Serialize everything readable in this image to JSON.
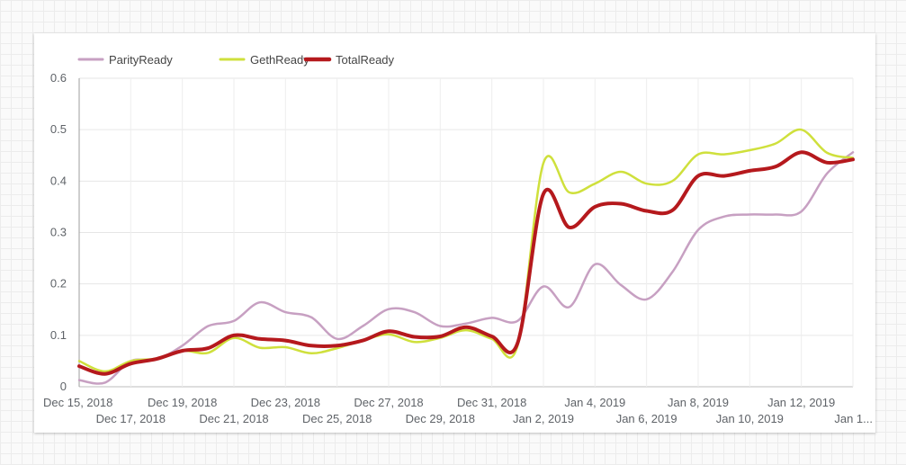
{
  "chart_data": {
    "type": "line",
    "title": "",
    "xlabel": "",
    "ylabel": "",
    "ylim": [
      0,
      0.6
    ],
    "yticks": [
      "0",
      "0.1",
      "0.2",
      "0.3",
      "0.4",
      "0.5",
      "0.6"
    ],
    "grid": true,
    "legend_position": "top-left",
    "x": [
      "Dec 15, 2018",
      "Dec 16, 2018",
      "Dec 17, 2018",
      "Dec 18, 2018",
      "Dec 19, 2018",
      "Dec 20, 2018",
      "Dec 21, 2018",
      "Dec 22, 2018",
      "Dec 23, 2018",
      "Dec 24, 2018",
      "Dec 25, 2018",
      "Dec 26, 2018",
      "Dec 27, 2018",
      "Dec 28, 2018",
      "Dec 29, 2018",
      "Dec 30, 2018",
      "Dec 31, 2018",
      "Jan 1, 2019",
      "Jan 2, 2019",
      "Jan 3, 2019",
      "Jan 4, 2019",
      "Jan 5, 2019",
      "Jan 6, 2019",
      "Jan 7, 2019",
      "Jan 8, 2019",
      "Jan 9, 2019",
      "Jan 10, 2019",
      "Jan 11, 2019",
      "Jan 12, 2019",
      "Jan 13, 2019",
      "Jan 14, 2019"
    ],
    "xtick_labels": [
      "Dec 15, 2018",
      "Dec 17, 2018",
      "Dec 19, 2018",
      "Dec 21, 2018",
      "Dec 23, 2018",
      "Dec 25, 2018",
      "Dec 27, 2018",
      "Dec 29, 2018",
      "Dec 31, 2018",
      "Jan 2, 2019",
      "Jan 4, 2019",
      "Jan 6, 2019",
      "Jan 8, 2019",
      "Jan 10, 2019",
      "Jan 12, 2019",
      "Jan 1..."
    ],
    "series": [
      {
        "name": "ParityReady",
        "color": "#c7a0c2",
        "width": 2.5,
        "values": [
          0.013,
          0.008,
          0.05,
          0.053,
          0.08,
          0.118,
          0.128,
          0.164,
          0.145,
          0.135,
          0.093,
          0.118,
          0.151,
          0.145,
          0.118,
          0.123,
          0.134,
          0.128,
          0.195,
          0.155,
          0.238,
          0.198,
          0.17,
          0.223,
          0.305,
          0.331,
          0.335,
          0.335,
          0.341,
          0.415,
          0.456
        ]
      },
      {
        "name": "GethReady",
        "color": "#cfe03c",
        "width": 2.5,
        "values": [
          0.05,
          0.03,
          0.05,
          0.055,
          0.07,
          0.066,
          0.095,
          0.076,
          0.077,
          0.065,
          0.075,
          0.09,
          0.102,
          0.087,
          0.095,
          0.11,
          0.093,
          0.08,
          0.435,
          0.378,
          0.395,
          0.418,
          0.395,
          0.4,
          0.452,
          0.452,
          0.46,
          0.473,
          0.5,
          0.455,
          0.445
        ]
      },
      {
        "name": "TotalReady",
        "color": "#b5191d",
        "width": 4,
        "values": [
          0.04,
          0.025,
          0.045,
          0.054,
          0.07,
          0.075,
          0.1,
          0.093,
          0.09,
          0.08,
          0.08,
          0.09,
          0.108,
          0.097,
          0.098,
          0.116,
          0.098,
          0.085,
          0.375,
          0.31,
          0.35,
          0.356,
          0.342,
          0.343,
          0.41,
          0.41,
          0.42,
          0.428,
          0.456,
          0.436,
          0.442
        ]
      }
    ]
  }
}
